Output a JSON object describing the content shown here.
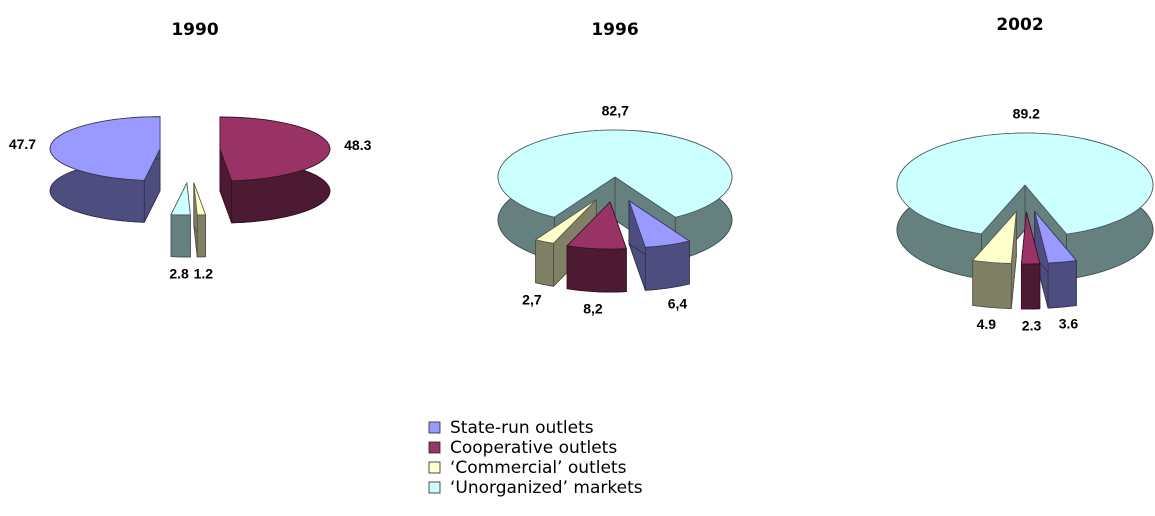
{
  "legend": {
    "categories": [
      "State-run outlets",
      "Cooperative outlets",
      "‘Commercial’ outlets",
      "‘Unorganized’ markets"
    ],
    "colors": [
      "#9999ff",
      "#993366",
      "#ffffcc",
      "#ccffff"
    ]
  },
  "chart_data": [
    {
      "type": "pie",
      "title": "1990",
      "values": [
        47.7,
        48.3,
        1.2,
        2.8
      ]
    },
    {
      "type": "pie",
      "title": "1996",
      "values": [
        6.4,
        8.2,
        2.7,
        82.7
      ],
      "value_labels": [
        "6,4",
        "8,2",
        "2,7",
        "82,7"
      ]
    },
    {
      "type": "pie",
      "title": "2002",
      "values": [
        3.6,
        2.3,
        4.9,
        89.2
      ]
    }
  ]
}
